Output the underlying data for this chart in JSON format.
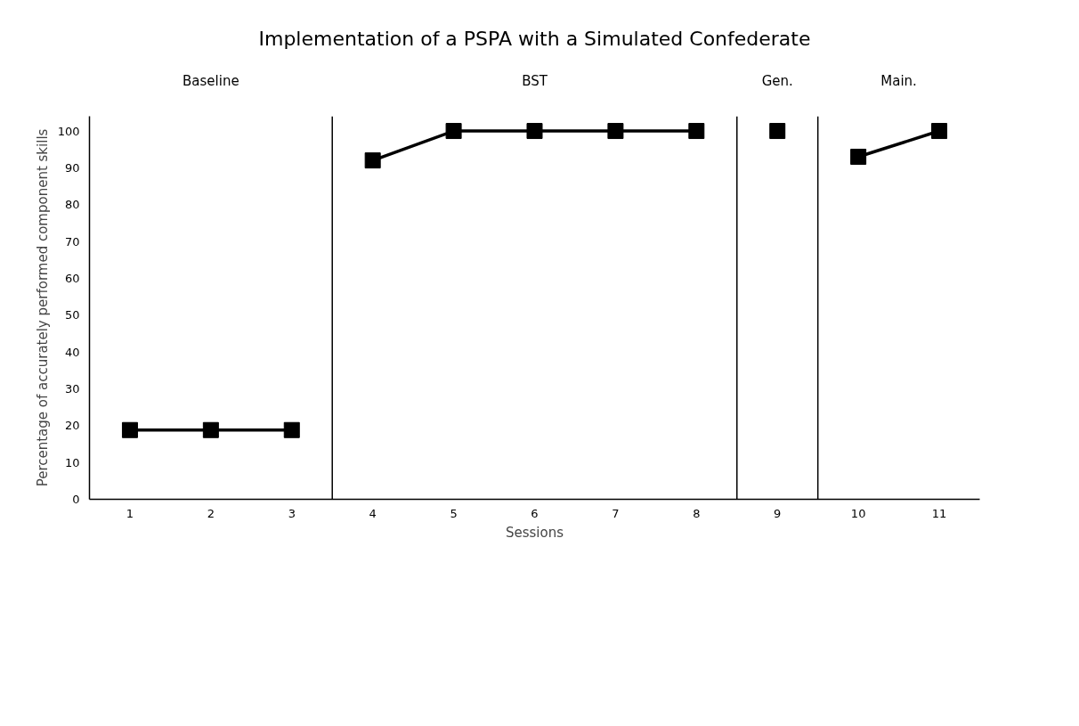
{
  "chart_data": {
    "type": "line",
    "title": "Implementation of a PSPA with a Simulated Confederate",
    "xlabel": "Sessions",
    "ylabel": "Percentage of accurately performed component skills",
    "xlim": [
      0.5,
      11.5
    ],
    "xticks": [
      1,
      2,
      3,
      4,
      5,
      6,
      7,
      8,
      9,
      10,
      11
    ],
    "ylim": [
      0,
      104
    ],
    "yticks": [
      0,
      10,
      20,
      30,
      40,
      50,
      60,
      70,
      80,
      90,
      100
    ],
    "series": [
      {
        "color": "#000000",
        "x": [
          1,
          2,
          3
        ],
        "values": [
          18.8,
          18.8,
          18.8
        ]
      },
      {
        "color": "#000000",
        "x": [
          4,
          5,
          6,
          7,
          8
        ],
        "values": [
          92,
          100,
          100,
          100,
          100
        ]
      },
      {
        "color": "#000000",
        "x": [
          9
        ],
        "values": [
          100
        ]
      },
      {
        "color": "#000000",
        "x": [
          10,
          11
        ],
        "values": [
          93,
          100
        ]
      }
    ],
    "ref_lines": [
      {
        "axis": "x",
        "value": 3.5,
        "color": "#000000"
      },
      {
        "axis": "x",
        "value": 8.5,
        "color": "#000000"
      },
      {
        "axis": "x",
        "value": 9.5,
        "color": "#000000"
      }
    ],
    "annotations": [
      "Baseline",
      "BST",
      "Gen.",
      "Main."
    ],
    "marker": "square",
    "line_style": "solid",
    "grid": false
  }
}
